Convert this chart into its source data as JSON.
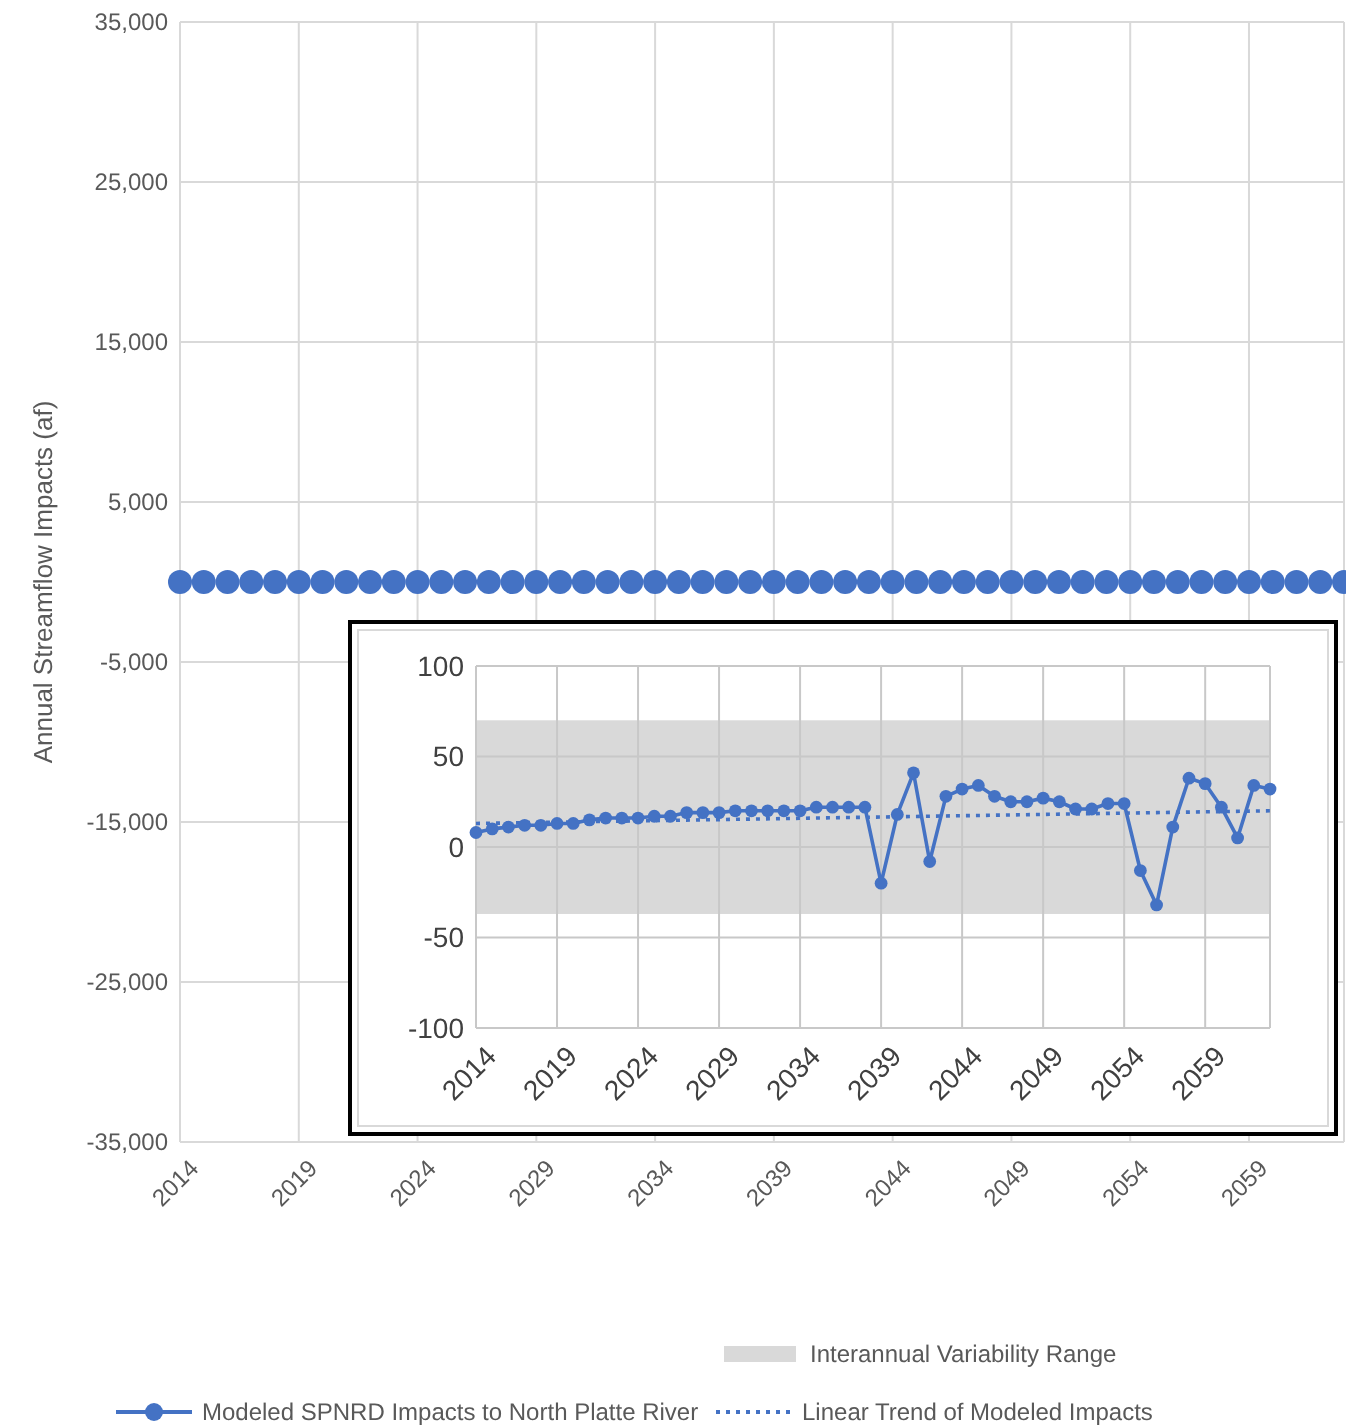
{
  "chart_data": [
    {
      "type": "scatter",
      "ylabel": "Annual Streamflow Impacts (af)",
      "x": [
        2014,
        2015,
        2016,
        2017,
        2018,
        2019,
        2020,
        2021,
        2022,
        2023,
        2024,
        2025,
        2026,
        2027,
        2028,
        2029,
        2030,
        2031,
        2032,
        2033,
        2034,
        2035,
        2036,
        2037,
        2038,
        2039,
        2040,
        2041,
        2042,
        2043,
        2044,
        2045,
        2046,
        2047,
        2048,
        2049,
        2050,
        2051,
        2052,
        2053,
        2054,
        2055,
        2056,
        2057,
        2058,
        2059,
        2060,
        2061,
        2062,
        2063
      ],
      "xlim": [
        2014,
        2063
      ],
      "xticks": [
        2014,
        2019,
        2024,
        2029,
        2034,
        2039,
        2044,
        2049,
        2054,
        2059
      ],
      "ylim": [
        -35000,
        35000
      ],
      "yticks": [
        {
          "value": -35000,
          "label": "-35,000"
        },
        {
          "value": -25000,
          "label": "-25,000"
        },
        {
          "value": -15000,
          "label": "-15,000"
        },
        {
          "value": -5000,
          "label": "-5,000"
        },
        {
          "value": 5000,
          "label": "5,000"
        },
        {
          "value": 15000,
          "label": "15,000"
        },
        {
          "value": 25000,
          "label": "25,000"
        },
        {
          "value": 35000,
          "label": "35,000"
        }
      ],
      "grid": true,
      "marker": "circle",
      "series": [
        {
          "color": "#4472c4",
          "values": [
            0,
            0,
            0,
            0,
            0,
            0,
            0,
            0,
            0,
            0,
            0,
            0,
            0,
            0,
            0,
            0,
            0,
            0,
            0,
            0,
            0,
            0,
            0,
            0,
            0,
            0,
            0,
            0,
            0,
            0,
            0,
            0,
            0,
            0,
            0,
            0,
            0,
            0,
            0,
            0,
            0,
            0,
            0,
            0,
            0,
            0,
            0,
            0,
            0,
            0
          ]
        }
      ]
    },
    {
      "type": "line",
      "x": [
        2014,
        2015,
        2016,
        2017,
        2018,
        2019,
        2020,
        2021,
        2022,
        2023,
        2024,
        2025,
        2026,
        2027,
        2028,
        2029,
        2030,
        2031,
        2032,
        2033,
        2034,
        2035,
        2036,
        2037,
        2038,
        2039,
        2040,
        2041,
        2042,
        2043,
        2044,
        2045,
        2046,
        2047,
        2048,
        2049,
        2050,
        2051,
        2052,
        2053,
        2054,
        2055,
        2056,
        2057,
        2058,
        2059,
        2060,
        2061,
        2062,
        2063
      ],
      "xlim": [
        2014,
        2063
      ],
      "xticks": [
        2014,
        2019,
        2024,
        2029,
        2034,
        2039,
        2044,
        2049,
        2054,
        2059
      ],
      "ylim": [
        -100,
        100
      ],
      "yticks": [
        -100,
        -50,
        0,
        50,
        100
      ],
      "grid": true,
      "legend": "bottom",
      "bands": [
        {
          "axis": "y",
          "from": -37,
          "to": 70,
          "label": "Interannual Variability Range",
          "color": "#d9d9d9"
        }
      ],
      "series": [
        {
          "name": "Modeled SPNRD Impacts to North Platte River",
          "color": "#4472c4",
          "marker": "circle",
          "line_style": "solid",
          "values": [
            8,
            10,
            11,
            12,
            12,
            13,
            13,
            15,
            16,
            16,
            16,
            17,
            17,
            19,
            19,
            19,
            20,
            20,
            20,
            20,
            20,
            22,
            22,
            22,
            22,
            -20,
            18,
            41,
            -8,
            28,
            32,
            34,
            28,
            25,
            25,
            27,
            25,
            21,
            21,
            24,
            24,
            -13,
            -32,
            11,
            38,
            35,
            22,
            5,
            34,
            32
          ]
        },
        {
          "name": "Linear Trend of Modeled Impacts",
          "color": "#4472c4",
          "marker": "none",
          "line_style": "dotted",
          "x": [
            2014,
            2063
          ],
          "values": [
            13,
            20
          ]
        }
      ]
    }
  ]
}
